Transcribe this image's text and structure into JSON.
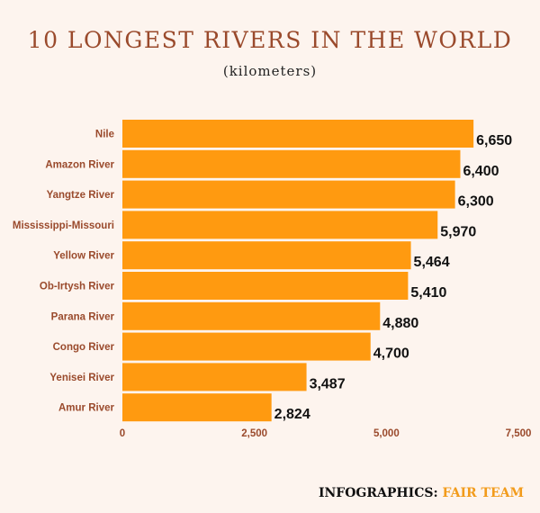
{
  "chart_data": {
    "type": "bar",
    "orientation": "horizontal",
    "title": "10 LONGEST RIVERS IN THE WORLD",
    "subtitle": "(kilometers)",
    "categories": [
      "Nile",
      "Amazon River",
      "Yangtze River",
      "Mississippi-Missouri",
      "Yellow River",
      "Ob-Irtysh River",
      "Parana River",
      "Congo River",
      "Yenisei River",
      "Amur River"
    ],
    "values": [
      6650,
      6400,
      6300,
      5970,
      5464,
      5410,
      4880,
      4700,
      3487,
      2824
    ],
    "value_labels": [
      "6,650",
      "6,400",
      "6,300",
      "5,970",
      "5,464",
      "5,410",
      "4,880",
      "4,700",
      "3,487",
      "2,824"
    ],
    "xlim": [
      0,
      7500
    ],
    "xticks": [
      0,
      2500,
      5000,
      7500
    ],
    "xtick_labels": [
      "0",
      "2,500",
      "5,000",
      "7,500"
    ],
    "grid": false,
    "legend": "none",
    "bar_color": "#ff9a10"
  },
  "footer": {
    "prefix": "INFOGRAPHICS:",
    "brand": "FAIR TEAM"
  },
  "colors": {
    "title": "#9a4a2c",
    "brand": "#f29b1b",
    "background": "#fdf4ee"
  }
}
